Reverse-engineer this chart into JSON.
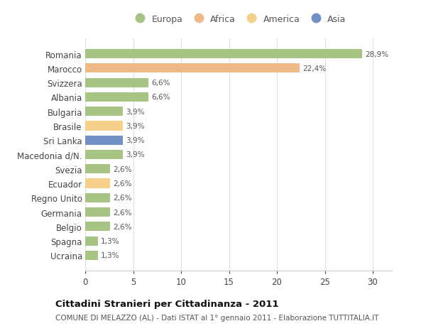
{
  "countries": [
    "Romania",
    "Marocco",
    "Svizzera",
    "Albania",
    "Bulgaria",
    "Brasile",
    "Sri Lanka",
    "Macedonia d/N.",
    "Svezia",
    "Ecuador",
    "Regno Unito",
    "Germania",
    "Belgio",
    "Spagna",
    "Ucraina"
  ],
  "values": [
    28.9,
    22.4,
    6.6,
    6.6,
    3.9,
    3.9,
    3.9,
    3.9,
    2.6,
    2.6,
    2.6,
    2.6,
    2.6,
    1.3,
    1.3
  ],
  "labels": [
    "28,9%",
    "22,4%",
    "6,6%",
    "6,6%",
    "3,9%",
    "3,9%",
    "3,9%",
    "3,9%",
    "2,6%",
    "2,6%",
    "2,6%",
    "2,6%",
    "2,6%",
    "1,3%",
    "1,3%"
  ],
  "colors": [
    "#a8c484",
    "#f0b988",
    "#a8c484",
    "#a8c484",
    "#a8c484",
    "#f5d08a",
    "#7191c4",
    "#a8c484",
    "#a8c484",
    "#f5d08a",
    "#a8c484",
    "#a8c484",
    "#a8c484",
    "#a8c484",
    "#a8c484"
  ],
  "legend": {
    "Europa": "#a8c484",
    "Africa": "#f0b988",
    "America": "#f5d08a",
    "Asia": "#7191c4"
  },
  "xlim": [
    0,
    32
  ],
  "xticks": [
    0,
    5,
    10,
    15,
    20,
    25,
    30
  ],
  "title": "Cittadini Stranieri per Cittadinanza - 2011",
  "subtitle": "COMUNE DI MELAZZO (AL) - Dati ISTAT al 1° gennaio 2011 - Elaborazione TUTTITALIA.IT",
  "background_color": "#ffffff",
  "grid_color": "#e0e0e0",
  "bar_height": 0.65
}
